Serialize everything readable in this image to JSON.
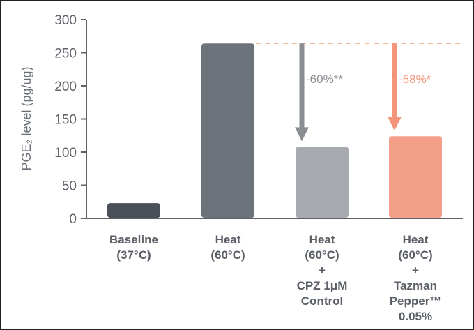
{
  "chart_data": {
    "type": "bar",
    "title": "",
    "xlabel": "",
    "ylabel": "PGE₂ level (pg/ug)",
    "ylim": [
      0,
      300
    ],
    "yticks": [
      0,
      50,
      100,
      150,
      200,
      250,
      300
    ],
    "grid": false,
    "categories": [
      [
        "Baseline",
        "(37°C)"
      ],
      [
        "Heat",
        "(60°C)"
      ],
      [
        "Heat",
        "(60°C)",
        "+",
        "CPZ 1μM",
        "Control"
      ],
      [
        "Heat",
        "(60°C)",
        "+",
        "Tazman",
        "Pepper™",
        "0.05%"
      ]
    ],
    "values": [
      23,
      264,
      108,
      124
    ],
    "colors": [
      "#4b4f57",
      "#6c737b",
      "#a7abb0",
      "#f4a088"
    ],
    "reference_line": {
      "value": 264,
      "color": "#f4b49e",
      "style": "dashed"
    },
    "annotations": [
      {
        "bar": 2,
        "label": "-60%**",
        "color": "#8a8e93"
      },
      {
        "bar": 3,
        "label": "-58%*",
        "color": "#f4957a"
      }
    ]
  }
}
